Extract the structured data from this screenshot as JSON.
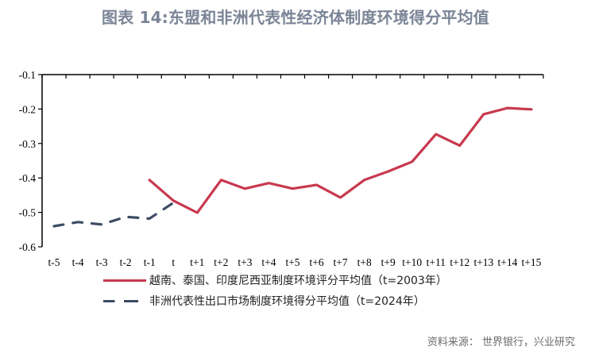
{
  "title": "图表 14:东盟和非洲代表性经济体制度环境得分平均值",
  "source": "资料来源：   世界银行，兴业研究",
  "colors": {
    "series_red": "#c8394f",
    "series_dash": "#3e4b63",
    "title": "#7b8597"
  },
  "legend": {
    "items": [
      {
        "label": "越南、泰国、印度尼西亚制度环境评分平均值（t=2003年）",
        "style": "solid",
        "color": "#c8394f"
      },
      {
        "label": "非洲代表性出口市场制度环境得分平均值（t=2024年）",
        "style": "dashed",
        "color": "#3e4b63"
      }
    ]
  },
  "chart_data": {
    "type": "line",
    "title": "图表 14:东盟和非洲代表性经济体制度环境得分平均值",
    "xlabel": "",
    "ylabel": "",
    "ylim": [
      -0.6,
      -0.1
    ],
    "yticks": [
      -0.1,
      -0.2,
      -0.3,
      -0.4,
      -0.5,
      -0.6
    ],
    "ytick_labels": [
      "-0.1",
      "-0.2",
      "-0.3",
      "-0.4",
      "-0.5",
      "-0.6"
    ],
    "categories": [
      "t-5",
      "t-4",
      "t-3",
      "t-2",
      "t-1",
      "t",
      "t+1",
      "t+2",
      "t+3",
      "t+4",
      "t+5",
      "t+6",
      "t+7",
      "t+8",
      "t+9",
      "t+10",
      "t+11",
      "t+12",
      "t+13",
      "t+14",
      "t+15"
    ],
    "grid": false,
    "x_axis_position": "top (at y=-0.1)",
    "legend_position": "bottom",
    "series": [
      {
        "name": "越南、泰国、印度尼西亚制度环境评分平均值（t=2003年）",
        "style": "solid",
        "color": "#c8394f",
        "values": [
          null,
          null,
          null,
          null,
          -0.406,
          -0.466,
          -0.501,
          -0.406,
          -0.431,
          -0.415,
          -0.431,
          -0.42,
          -0.457,
          -0.406,
          -0.381,
          -0.353,
          -0.273,
          -0.306,
          -0.215,
          -0.197,
          -0.201
        ]
      },
      {
        "name": "非洲代表性出口市场制度环境得分平均值（t=2024年）",
        "style": "dashed",
        "color": "#3e4b63",
        "values": [
          -0.54,
          -0.528,
          -0.535,
          -0.513,
          -0.518,
          -0.472,
          null,
          null,
          null,
          null,
          null,
          null,
          null,
          null,
          null,
          null,
          null,
          null,
          null,
          null,
          null
        ]
      }
    ]
  }
}
